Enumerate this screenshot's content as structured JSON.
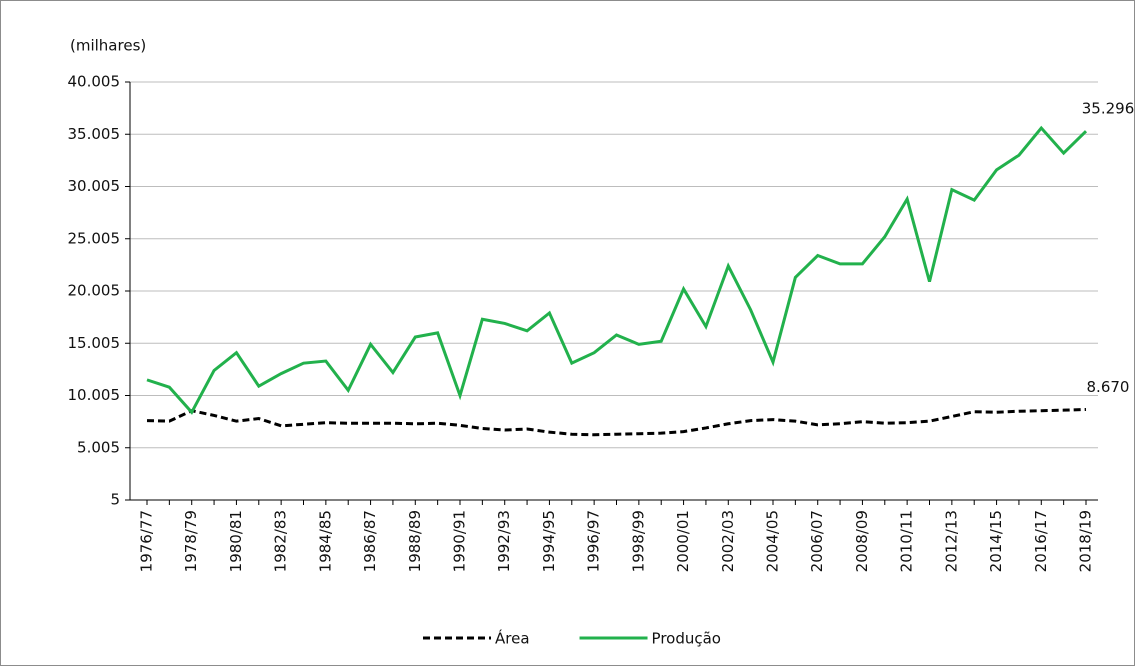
{
  "chart_data": {
    "type": "line",
    "y_label": "(milhares)",
    "categories": [
      "1976/77",
      null,
      "1978/79",
      null,
      "1980/81",
      null,
      "1982/83",
      null,
      "1984/85",
      null,
      "1986/87",
      null,
      "1988/89",
      null,
      "1990/91",
      null,
      "1992/93",
      null,
      "1994/95",
      null,
      "1996/97",
      null,
      "1998/99",
      null,
      "2000/01",
      null,
      "2002/03",
      null,
      "2004/05",
      null,
      "2006/07",
      null,
      "2008/09",
      null,
      "2010/11",
      null,
      "2012/13",
      null,
      "2014/15",
      null,
      "2016/17",
      null,
      "2018/19"
    ],
    "series": [
      {
        "name": "Área",
        "color": "#000000",
        "line_style": "dashed",
        "values": [
          7600,
          7550,
          8550,
          8100,
          7550,
          7800,
          7100,
          7250,
          7400,
          7350,
          7350,
          7350,
          7300,
          7350,
          7150,
          6850,
          6700,
          6800,
          6500,
          6300,
          6250,
          6300,
          6350,
          6400,
          6550,
          6900,
          7300,
          7600,
          7700,
          7550,
          7200,
          7300,
          7500,
          7350,
          7400,
          7550,
          8000,
          8450,
          8400,
          8500,
          8550,
          8600,
          8670
        ],
        "value_labels": [
          null,
          null,
          null,
          null,
          null,
          null,
          null,
          null,
          null,
          null,
          null,
          null,
          null,
          null,
          null,
          null,
          null,
          null,
          null,
          null,
          null,
          null,
          null,
          null,
          null,
          null,
          null,
          null,
          null,
          null,
          null,
          null,
          null,
          null,
          null,
          null,
          null,
          null,
          null,
          null,
          null,
          null,
          "8.670"
        ]
      },
      {
        "name": "Produção",
        "color": "#22b14c",
        "line_style": "solid",
        "values": [
          11500,
          10800,
          8400,
          12400,
          14100,
          10900,
          12100,
          13100,
          13300,
          10500,
          14900,
          12200,
          15600,
          16000,
          10000,
          17300,
          16900,
          16200,
          17900,
          13100,
          14100,
          15800,
          14900,
          15200,
          20200,
          16600,
          22400,
          18200,
          13200,
          21300,
          23400,
          22600,
          22600,
          25200,
          28800,
          20900,
          29700,
          28700,
          31600,
          33000,
          35600,
          33200,
          35296
        ],
        "value_labels": [
          null,
          null,
          null,
          null,
          null,
          null,
          null,
          null,
          null,
          null,
          null,
          null,
          null,
          null,
          null,
          null,
          null,
          null,
          null,
          null,
          null,
          null,
          null,
          null,
          null,
          null,
          null,
          null,
          null,
          null,
          null,
          null,
          null,
          null,
          null,
          null,
          null,
          null,
          null,
          null,
          null,
          null,
          "35.296"
        ]
      }
    ],
    "ylim": [
      5,
      40005
    ],
    "yticks": [
      5,
      {
        "value": 5005,
        "label": "5.005"
      },
      {
        "value": 10005,
        "label": "10.005"
      },
      {
        "value": 15005,
        "label": "15.005"
      },
      {
        "value": 20005,
        "label": "20.005"
      },
      {
        "value": 25005,
        "label": "25.005"
      },
      {
        "value": 30005,
        "label": "30.005"
      },
      {
        "value": 35005,
        "label": "35.005"
      },
      {
        "value": 40005,
        "label": "40.005"
      }
    ],
    "grid": true,
    "legend": "bottom"
  }
}
